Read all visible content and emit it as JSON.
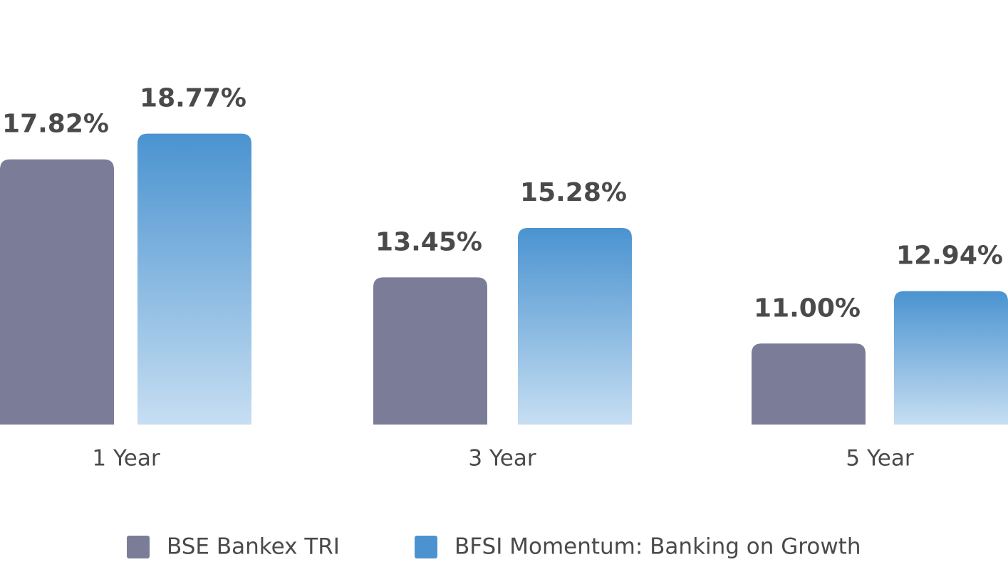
{
  "chart_data": {
    "type": "bar",
    "categories": [
      "1 Year",
      "3 Year",
      "5 Year"
    ],
    "series": [
      {
        "name": "BSE Bankex TRI",
        "color": "#7b7d98",
        "values": [
          17.82,
          13.45,
          11.0
        ],
        "value_labels": [
          "17.82%",
          "13.45%",
          "11.00%"
        ]
      },
      {
        "name": "BFSI Momentum: Banking on Growth",
        "color": "#4a93d0",
        "values": [
          18.77,
          15.28,
          12.94
        ],
        "value_labels": [
          "18.77%",
          "15.28%",
          "12.94%"
        ]
      }
    ],
    "ylim": [
      8,
      19.5
    ]
  }
}
